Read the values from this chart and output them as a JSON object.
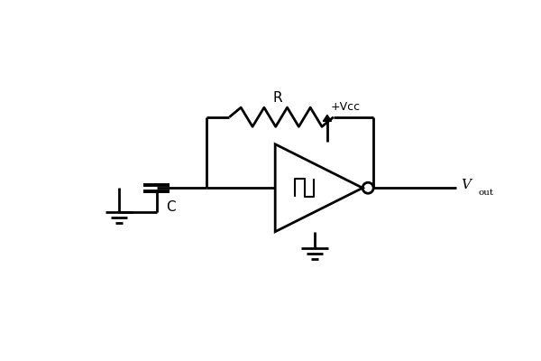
{
  "bg_color": "#ffffff",
  "line_color": "#000000",
  "line_width": 2.0,
  "fig_width": 6.0,
  "fig_height": 4.0,
  "dpi": 100,
  "R_label": "R",
  "C_label": "C",
  "Vcc_label": "+Vcc",
  "Vout_label": "V",
  "Vout_sub": "out",
  "xlim": [
    0,
    10
  ],
  "ylim": [
    0,
    6.67
  ]
}
